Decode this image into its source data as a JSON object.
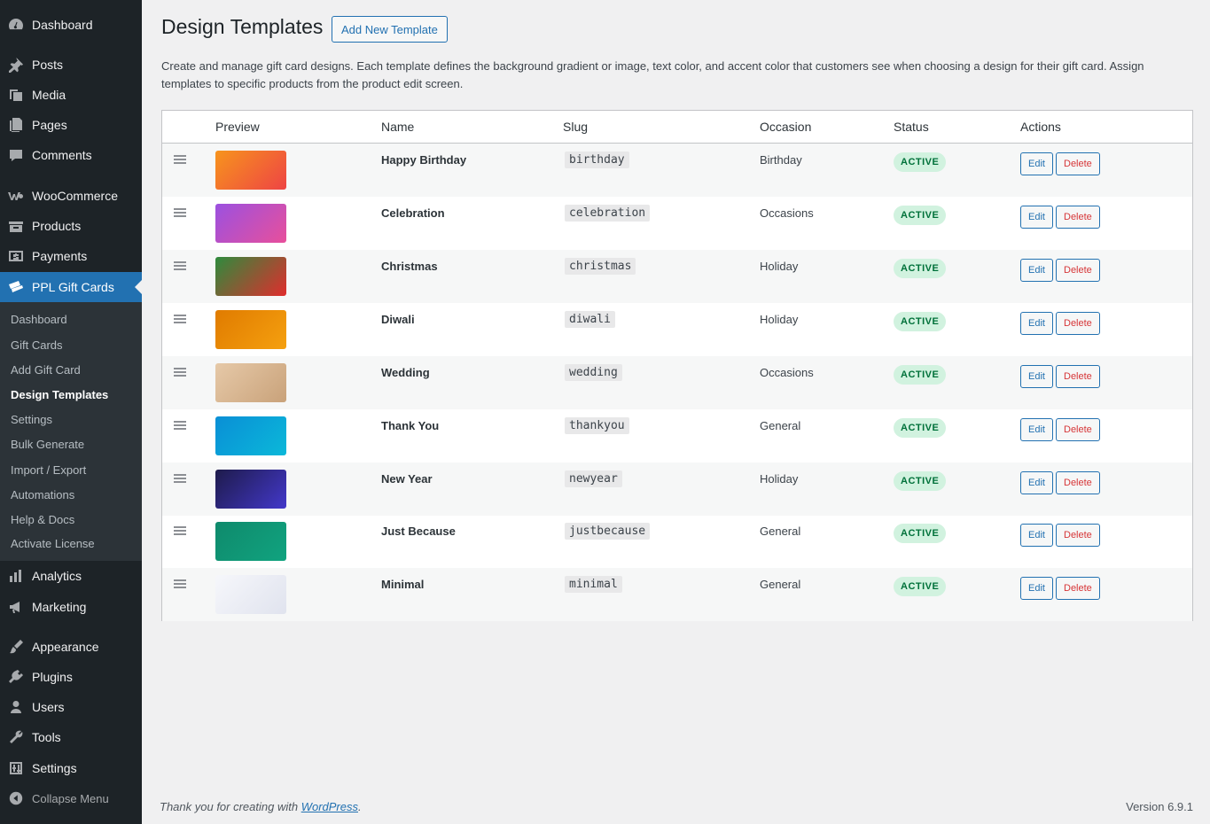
{
  "sidebar": {
    "items": [
      {
        "label": "Dashboard",
        "icon": "dashboard-icon"
      },
      {
        "label": "Posts",
        "icon": "pin-icon"
      },
      {
        "label": "Media",
        "icon": "media-icon"
      },
      {
        "label": "Pages",
        "icon": "pages-icon"
      },
      {
        "label": "Comments",
        "icon": "comments-icon"
      },
      {
        "label": "WooCommerce",
        "icon": "woocommerce-icon"
      },
      {
        "label": "Products",
        "icon": "products-icon"
      },
      {
        "label": "Payments",
        "icon": "payments-icon"
      },
      {
        "label": "PPL Gift Cards",
        "icon": "gift-card-icon"
      },
      {
        "label": "Analytics",
        "icon": "analytics-icon"
      },
      {
        "label": "Marketing",
        "icon": "megaphone-icon"
      },
      {
        "label": "Appearance",
        "icon": "brush-icon"
      },
      {
        "label": "Plugins",
        "icon": "plug-icon"
      },
      {
        "label": "Users",
        "icon": "user-icon"
      },
      {
        "label": "Tools",
        "icon": "wrench-icon"
      },
      {
        "label": "Settings",
        "icon": "settings-icon"
      }
    ],
    "submenu": [
      "Dashboard",
      "Gift Cards",
      "Add Gift Card",
      "Design Templates",
      "Settings",
      "Bulk Generate",
      "Import / Export",
      "Automations",
      "Help & Docs",
      "Activate License"
    ],
    "collapse_label": "Collapse Menu"
  },
  "page": {
    "title": "Design Templates",
    "add_new_label": "Add New Template",
    "description": "Create and manage gift card designs. Each template defines the background gradient or image, text color, and accent color that customers see when choosing a design for their gift card. Assign templates to specific products from the product edit screen."
  },
  "table": {
    "headers": [
      "Preview",
      "Name",
      "Slug",
      "Occasion",
      "Status",
      "Actions"
    ],
    "edit_label": "Edit",
    "delete_label": "Delete",
    "rows": [
      {
        "name": "Happy Birthday",
        "slug": "birthday",
        "occasion": "Birthday",
        "status": "ACTIVE",
        "gradient": [
          "#f7941d",
          "#ee4444"
        ]
      },
      {
        "name": "Celebration",
        "slug": "celebration",
        "occasion": "Occasions",
        "status": "ACTIVE",
        "gradient": [
          "#9b51e0",
          "#e84f9b"
        ]
      },
      {
        "name": "Christmas",
        "slug": "christmas",
        "occasion": "Holiday",
        "status": "ACTIVE",
        "gradient": [
          "#2e8b3d",
          "#e02d2d"
        ]
      },
      {
        "name": "Diwali",
        "slug": "diwali",
        "occasion": "Holiday",
        "status": "ACTIVE",
        "gradient": [
          "#e07b00",
          "#f5a00f"
        ]
      },
      {
        "name": "Wedding",
        "slug": "wedding",
        "occasion": "Occasions",
        "status": "ACTIVE",
        "gradient": [
          "#e6c9a8",
          "#c9a27a"
        ]
      },
      {
        "name": "Thank You",
        "slug": "thankyou",
        "occasion": "General",
        "status": "ACTIVE",
        "gradient": [
          "#0a8fd6",
          "#0bb8d9"
        ]
      },
      {
        "name": "New Year",
        "slug": "newyear",
        "occasion": "Holiday",
        "status": "ACTIVE",
        "gradient": [
          "#1e1b4b",
          "#4338ca"
        ]
      },
      {
        "name": "Just Because",
        "slug": "justbecause",
        "occasion": "General",
        "status": "ACTIVE",
        "gradient": [
          "#0f8a6c",
          "#10a37f"
        ]
      },
      {
        "name": "Minimal",
        "slug": "minimal",
        "occasion": "General",
        "status": "ACTIVE",
        "gradient": [
          "#f6f7fb",
          "#e0e3ee"
        ]
      }
    ]
  },
  "footer": {
    "thanks_prefix": "Thank you for creating with ",
    "wp_link": "WordPress",
    "thanks_suffix": ".",
    "version": "Version 6.9.1"
  },
  "colors": {
    "sidebar_bg": "#1d2327",
    "submenu_bg": "#2c3338",
    "accent": "#2271b1",
    "active_badge_bg": "#d1f2df",
    "active_badge_text": "#00713a",
    "delete_text": "#d63638"
  }
}
